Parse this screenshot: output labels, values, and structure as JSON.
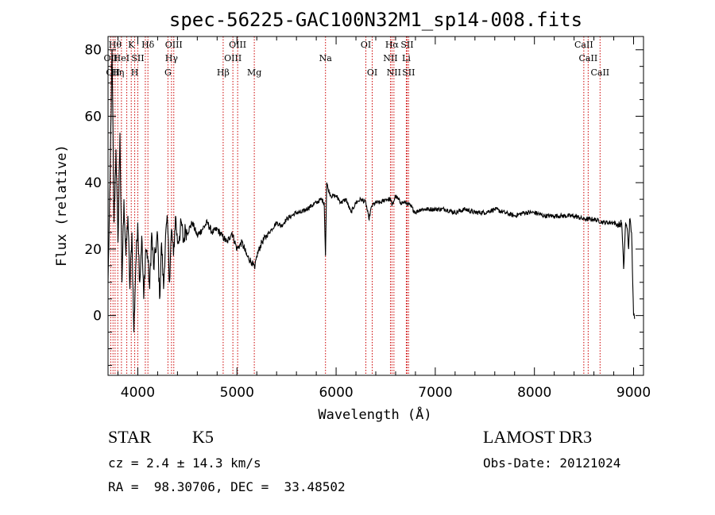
{
  "chart_data": {
    "type": "line",
    "title": "spec-56225-GAC100N32M1_sp14-008.fits",
    "xlabel": "Wavelength (Å)",
    "ylabel": "Flux (relative)",
    "xlim": [
      3700,
      9100
    ],
    "ylim": [
      -18,
      84
    ],
    "xticks": [
      4000,
      5000,
      6000,
      7000,
      8000,
      9000
    ],
    "xtick_labels": [
      "4000",
      "5000",
      "6000",
      "7000",
      "8000",
      "9000"
    ],
    "yticks": [
      0,
      20,
      40,
      60,
      80
    ],
    "ytick_labels": [
      "0",
      "20",
      "40",
      "60",
      "80"
    ],
    "series": [
      {
        "name": "flux",
        "x": [
          3700,
          3720,
          3740,
          3760,
          3780,
          3800,
          3820,
          3840,
          3860,
          3880,
          3900,
          3920,
          3940,
          3960,
          3980,
          4000,
          4020,
          4040,
          4060,
          4080,
          4100,
          4120,
          4140,
          4160,
          4180,
          4200,
          4220,
          4240,
          4260,
          4280,
          4300,
          4320,
          4340,
          4360,
          4380,
          4400,
          4420,
          4440,
          4460,
          4480,
          4500,
          4550,
          4600,
          4650,
          4700,
          4750,
          4800,
          4850,
          4900,
          4950,
          5000,
          5050,
          5100,
          5150,
          5180,
          5200,
          5250,
          5300,
          5350,
          5400,
          5450,
          5500,
          5550,
          5600,
          5650,
          5700,
          5750,
          5800,
          5850,
          5880,
          5893,
          5905,
          5920,
          5950,
          6000,
          6050,
          6100,
          6150,
          6200,
          6250,
          6300,
          6330,
          6360,
          6400,
          6450,
          6500,
          6550,
          6563,
          6600,
          6650,
          6700,
          6750,
          6800,
          6850,
          6900,
          6950,
          7000,
          7100,
          7200,
          7300,
          7400,
          7500,
          7600,
          7700,
          7800,
          7900,
          8000,
          8100,
          8200,
          8300,
          8400,
          8500,
          8600,
          8700,
          8800,
          8850,
          8880,
          8900,
          8920,
          8940,
          8950,
          8960,
          8980,
          9000,
          9010
        ],
        "y": [
          10,
          40,
          80,
          28,
          50,
          22,
          55,
          10,
          35,
          18,
          30,
          8,
          25,
          -5,
          15,
          28,
          10,
          24,
          5,
          20,
          18,
          8,
          25,
          14,
          20,
          24,
          5,
          22,
          8,
          24,
          28,
          10,
          26,
          18,
          30,
          22,
          24,
          28,
          22,
          26,
          25,
          28,
          24,
          26,
          28,
          25,
          26,
          24,
          22,
          25,
          20,
          22,
          18,
          16,
          14,
          18,
          22,
          24,
          26,
          28,
          27,
          29,
          30,
          31,
          31,
          32,
          33,
          34,
          35,
          34,
          18,
          40,
          38,
          36,
          36,
          34,
          35,
          31,
          34,
          35,
          34,
          29,
          33,
          34,
          34,
          35,
          35,
          33,
          36,
          34,
          34,
          33,
          31,
          32,
          32,
          32,
          32,
          32,
          31,
          32,
          31,
          31,
          32,
          31,
          30,
          31,
          31,
          30,
          30,
          30,
          30,
          29,
          29,
          28,
          28,
          27,
          28,
          14,
          28,
          25,
          20,
          29,
          25,
          0,
          -1
        ]
      }
    ],
    "reference_lines": [
      {
        "wavelength": 3727,
        "label": "OII",
        "row": 2
      },
      {
        "wavelength": 3750,
        "label": "OII",
        "row": 3
      },
      {
        "wavelength": 3771,
        "label": "Hθ",
        "row": 1
      },
      {
        "wavelength": 3798,
        "label": "Hη",
        "row": 3
      },
      {
        "wavelength": 3835,
        "label": "HeI",
        "row": 2
      },
      {
        "wavelength": 3889,
        "label": "",
        "row": 0
      },
      {
        "wavelength": 3934,
        "label": "K",
        "row": 1
      },
      {
        "wavelength": 3969,
        "label": "H",
        "row": 3
      },
      {
        "wavelength": 4000,
        "label": "SII",
        "row": 2
      },
      {
        "wavelength": 4076,
        "label": "",
        "row": 0
      },
      {
        "wavelength": 4102,
        "label": "Hδ",
        "row": 1
      },
      {
        "wavelength": 4304,
        "label": "G",
        "row": 3
      },
      {
        "wavelength": 4340,
        "label": "Hγ",
        "row": 2
      },
      {
        "wavelength": 4363,
        "label": "OIII",
        "row": 1
      },
      {
        "wavelength": 4861,
        "label": "Hβ",
        "row": 3
      },
      {
        "wavelength": 4959,
        "label": "OIII",
        "row": 2
      },
      {
        "wavelength": 5007,
        "label": "OIII",
        "row": 1
      },
      {
        "wavelength": 5175,
        "label": "Mg",
        "row": 3
      },
      {
        "wavelength": 5893,
        "label": "Na",
        "row": 2
      },
      {
        "wavelength": 6300,
        "label": "OI",
        "row": 1
      },
      {
        "wavelength": 6364,
        "label": "OI",
        "row": 3
      },
      {
        "wavelength": 6548,
        "label": "NII",
        "row": 2
      },
      {
        "wavelength": 6563,
        "label": "Hα",
        "row": 1
      },
      {
        "wavelength": 6583,
        "label": "NII",
        "row": 3
      },
      {
        "wavelength": 6708,
        "label": "Li",
        "row": 2
      },
      {
        "wavelength": 6716,
        "label": "SII",
        "row": 1
      },
      {
        "wavelength": 6731,
        "label": "SII",
        "row": 3
      },
      {
        "wavelength": 8498,
        "label": "CaII",
        "row": 1
      },
      {
        "wavelength": 8542,
        "label": "CaII",
        "row": 2
      },
      {
        "wavelength": 8662,
        "label": "CaII",
        "row": 3
      }
    ],
    "line_color": "#000000",
    "reference_line_color": "#cc0000"
  },
  "info": {
    "object_type": "STAR",
    "subclass": "K5",
    "survey": "LAMOST DR3",
    "redshift": "cz = 2.4 ± 14.3 km/s",
    "obs_date": "Obs-Date: 20121024",
    "coords": "RA =  98.30706, DEC =  33.48502"
  }
}
